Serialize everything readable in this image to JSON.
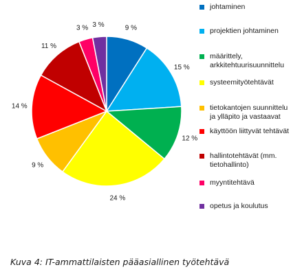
{
  "chart_data": {
    "type": "pie",
    "categories": [
      "johtaminen",
      "projektien johtaminen",
      "määrittely,\narkkitehtuurisuunnittelu",
      "systeemityötehtävät",
      "tietokantojen suunnittelu\nja ylläpito ja vastaavat",
      "käyttöön liittyvät tehtävät",
      "hallintotehtävät (mm.\ntietohallinto)",
      "myyntitehtävä",
      "opetus ja koulutus"
    ],
    "values": [
      9,
      15,
      12,
      24,
      9,
      14,
      11,
      3,
      3
    ],
    "value_labels": [
      "9 %",
      "15 %",
      "12 %",
      "24 %",
      "9 %",
      "14 %",
      "11 %",
      "3 %",
      "3 %"
    ],
    "colors": [
      "#0070C0",
      "#00B0F0",
      "#00B050",
      "#FFFF00",
      "#FFC000",
      "#FF0000",
      "#C00000",
      "#FF0066",
      "#7030A0"
    ],
    "start": "12 o'clock",
    "direction": "clockwise",
    "legend_position": "right"
  },
  "caption": "Kuva 4: IT-ammattilaisten pääasiallinen työtehtävä"
}
